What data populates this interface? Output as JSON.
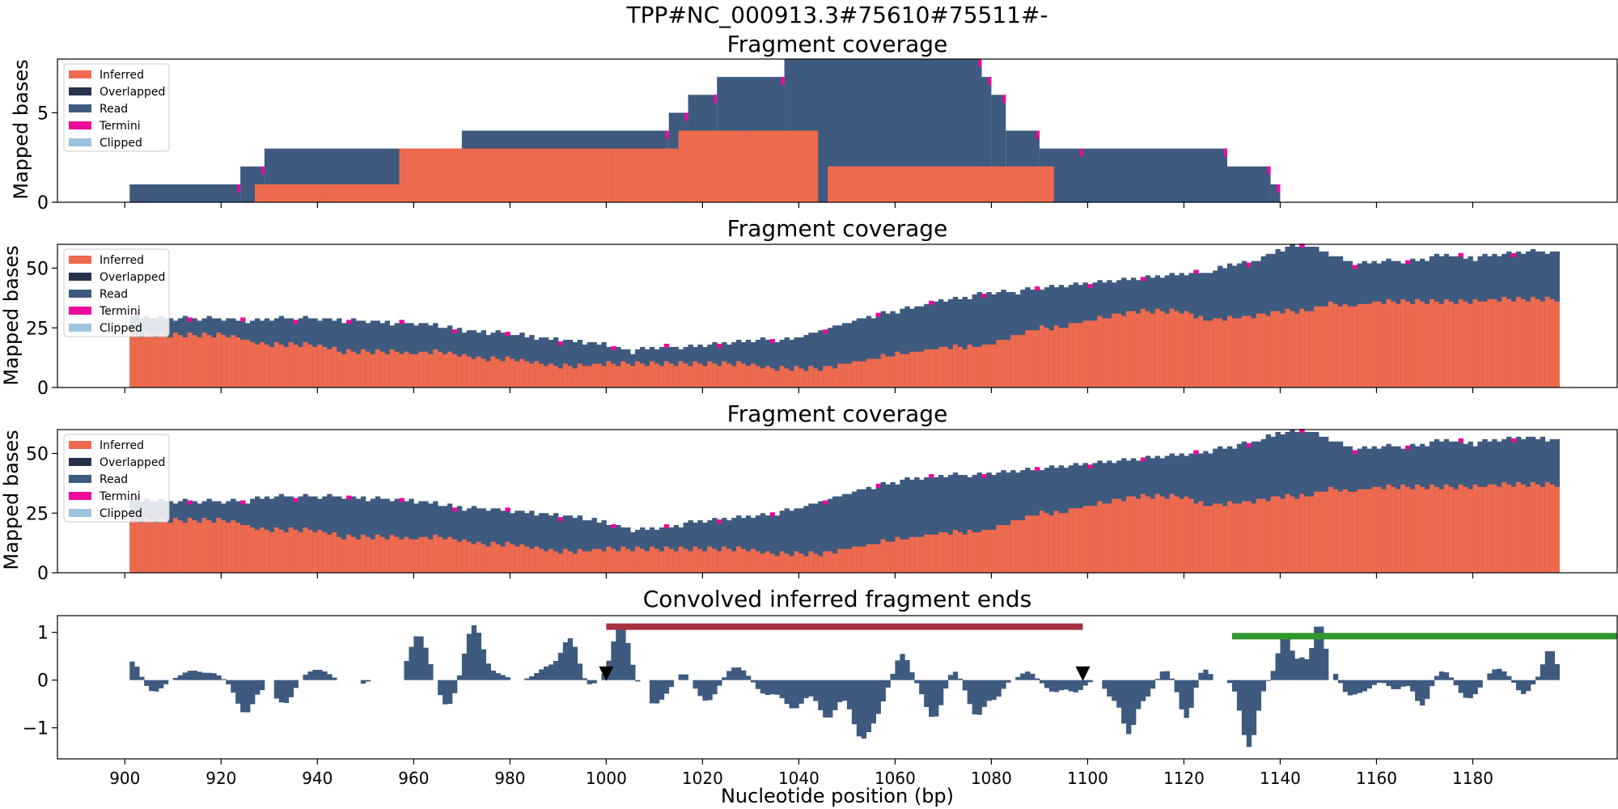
{
  "figure_title": "TPP#NC_000913.3#75610#75511#-",
  "xlabel": "Nucleotide position (bp)",
  "colors": {
    "inferred": "#ee6a4e",
    "overlapped": "#27324a",
    "read": "#3e5a7f",
    "termini": "#ee0a9c",
    "clipped": "#9ec3de",
    "red_bar": "#a4303f",
    "green_bar": "#2f972e",
    "marker": "#000000"
  },
  "legend_labels": [
    "Inferred",
    "Overlapped",
    "Read",
    "Termini",
    "Clipped"
  ],
  "chart_data": [
    {
      "type": "area",
      "title": "Fragment coverage",
      "ylabel": "Mapped bases",
      "xlim": [
        886,
        1210
      ],
      "ylim": [
        0,
        8
      ],
      "yticks": [
        0,
        5
      ],
      "xticks": [
        900,
        920,
        940,
        960,
        980,
        1000,
        1020,
        1040,
        1060,
        1080,
        1100,
        1120,
        1140,
        1160,
        1180
      ],
      "xtick_labels_shown": false,
      "legend_position": "upper-left",
      "series": [
        {
          "name": "Inferred",
          "segments": [
            {
              "x": [
                927,
                942
              ],
              "y": 1
            },
            {
              "x": [
                942,
                957
              ],
              "y": 1
            },
            {
              "x": [
                957,
                1001
              ],
              "y": 3
            },
            {
              "x": [
                1001,
                1015
              ],
              "y": 3
            },
            {
              "x": [
                1015,
                1030
              ],
              "y": 4
            },
            {
              "x": [
                1030,
                1044
              ],
              "y": 4
            },
            {
              "x": [
                1046,
                1059
              ],
              "y": 2
            },
            {
              "x": [
                1059,
                1090
              ],
              "y": 2
            },
            {
              "x": [
                1090,
                1093
              ],
              "y": 2
            }
          ]
        },
        {
          "name": "Read",
          "total_coverage": [
            {
              "x": [
                901,
                924
              ],
              "y": 1
            },
            {
              "x": [
                924,
                929
              ],
              "y": 2
            },
            {
              "x": [
                929,
                970
              ],
              "y": 3
            },
            {
              "x": [
                970,
                1013
              ],
              "y": 4
            },
            {
              "x": [
                1013,
                1017
              ],
              "y": 5
            },
            {
              "x": [
                1017,
                1023
              ],
              "y": 6
            },
            {
              "x": [
                1023,
                1037
              ],
              "y": 7
            },
            {
              "x": [
                1037,
                1078
              ],
              "y": 8
            },
            {
              "x": [
                1078,
                1080
              ],
              "y": 7
            },
            {
              "x": [
                1080,
                1083
              ],
              "y": 6
            },
            {
              "x": [
                1083,
                1090
              ],
              "y": 4
            },
            {
              "x": [
                1090,
                1099
              ],
              "y": 3
            },
            {
              "x": [
                1099,
                1129
              ],
              "y": 3
            },
            {
              "x": [
                1129,
                1138
              ],
              "y": 2
            },
            {
              "x": [
                1138,
                1140
              ],
              "y": 1
            }
          ]
        }
      ]
    },
    {
      "type": "area",
      "title": "Fragment coverage",
      "ylabel": "Mapped bases",
      "xlim": [
        886,
        1210
      ],
      "ylim": [
        0,
        60
      ],
      "yticks": [
        0,
        25,
        50
      ],
      "xtick_labels_shown": false,
      "legend_position": "upper-left",
      "x": [
        901,
        910,
        920,
        925,
        930,
        940,
        945,
        950,
        955,
        960,
        965,
        970,
        975,
        980,
        985,
        990,
        995,
        1000,
        1005,
        1010,
        1015,
        1020,
        1025,
        1030,
        1035,
        1040,
        1045,
        1050,
        1055,
        1060,
        1065,
        1070,
        1075,
        1080,
        1085,
        1090,
        1095,
        1100,
        1105,
        1110,
        1115,
        1120,
        1125,
        1130,
        1135,
        1140,
        1145,
        1150,
        1155,
        1160,
        1165,
        1170,
        1175,
        1180,
        1185,
        1190,
        1195,
        1198
      ],
      "series": [
        {
          "name": "Inferred",
          "values": [
            22,
            22,
            22,
            20,
            18,
            18,
            15,
            15,
            15,
            14,
            15,
            13,
            12,
            12,
            10,
            9,
            9,
            10,
            10,
            10,
            10,
            10,
            10,
            10,
            8,
            8,
            8,
            10,
            12,
            14,
            15,
            17,
            17,
            18,
            22,
            25,
            25,
            28,
            30,
            32,
            32,
            32,
            28,
            29,
            30,
            32,
            32,
            35,
            34,
            36,
            36,
            36,
            36,
            36,
            37,
            37,
            37,
            37
          ]
        },
        {
          "name": "Read",
          "values": [
            30,
            29,
            29,
            28,
            29,
            29,
            28,
            28,
            27,
            27,
            26,
            24,
            23,
            23,
            21,
            20,
            19,
            18,
            15,
            17,
            17,
            18,
            19,
            20,
            20,
            21,
            24,
            27,
            30,
            32,
            34,
            37,
            38,
            40,
            40,
            42,
            43,
            44,
            45,
            46,
            47,
            48,
            48,
            52,
            53,
            58,
            60,
            56,
            52,
            53,
            53,
            54,
            56,
            54,
            56,
            57,
            57,
            56
          ]
        }
      ]
    },
    {
      "type": "area",
      "title": "Fragment coverage",
      "ylabel": "Mapped bases",
      "xlim": [
        886,
        1210
      ],
      "ylim": [
        0,
        60
      ],
      "yticks": [
        0,
        25,
        50
      ],
      "xtick_labels_shown": false,
      "legend_position": "upper-left",
      "x": [
        901,
        910,
        920,
        925,
        930,
        940,
        945,
        950,
        955,
        960,
        965,
        970,
        975,
        980,
        985,
        990,
        995,
        1000,
        1005,
        1010,
        1015,
        1020,
        1025,
        1030,
        1035,
        1040,
        1045,
        1050,
        1055,
        1060,
        1065,
        1070,
        1075,
        1080,
        1085,
        1090,
        1095,
        1100,
        1105,
        1110,
        1115,
        1120,
        1125,
        1130,
        1135,
        1140,
        1145,
        1150,
        1155,
        1160,
        1165,
        1170,
        1175,
        1180,
        1185,
        1190,
        1195,
        1198
      ],
      "series": [
        {
          "name": "Inferred",
          "values": [
            22,
            22,
            22,
            20,
            18,
            18,
            15,
            15,
            15,
            14,
            15,
            13,
            12,
            12,
            10,
            9,
            9,
            10,
            10,
            10,
            10,
            10,
            10,
            10,
            8,
            8,
            8,
            10,
            12,
            14,
            15,
            17,
            17,
            18,
            22,
            25,
            25,
            28,
            30,
            32,
            32,
            32,
            28,
            29,
            30,
            32,
            32,
            35,
            34,
            36,
            36,
            36,
            36,
            36,
            37,
            37,
            37,
            37
          ]
        },
        {
          "name": "Read",
          "values": [
            31,
            30,
            30,
            30,
            32,
            32,
            32,
            31,
            31,
            30,
            29,
            27,
            27,
            26,
            25,
            24,
            23,
            21,
            18,
            19,
            20,
            22,
            23,
            24,
            25,
            27,
            30,
            33,
            36,
            38,
            40,
            41,
            41,
            42,
            43,
            44,
            45,
            46,
            47,
            48,
            49,
            50,
            51,
            53,
            55,
            59,
            60,
            56,
            52,
            53,
            53,
            54,
            56,
            54,
            56,
            57,
            56,
            55
          ]
        }
      ]
    },
    {
      "type": "bar",
      "title": "Convolved inferred fragment ends",
      "xlabel": "Nucleotide position (bp)",
      "xlim": [
        886,
        1210
      ],
      "ylim": [
        -1.65,
        1.35
      ],
      "yticks": [
        -1,
        0,
        1
      ],
      "yticklabels": [
        "−1",
        "0",
        "1"
      ],
      "xticks": [
        900,
        920,
        940,
        960,
        980,
        1000,
        1020,
        1040,
        1060,
        1080,
        1100,
        1120,
        1140,
        1160,
        1180
      ],
      "xtick_labels_shown": true,
      "peaks": [
        {
          "c": 901.5,
          "w": 1.5,
          "a": 0.4
        },
        {
          "c": 906,
          "w": 1.8,
          "a": -0.25
        },
        {
          "c": 914,
          "w": 2.2,
          "a": 0.2
        },
        {
          "c": 918.5,
          "w": 1.5,
          "a": 0.12
        },
        {
          "c": 925,
          "w": 1.8,
          "a": -0.7
        },
        {
          "c": 930.5,
          "w": 1.6,
          "a": -0.22
        },
        {
          "c": 933.5,
          "w": 1.6,
          "a": -0.45
        },
        {
          "c": 940,
          "w": 2.5,
          "a": 0.22
        },
        {
          "c": 947,
          "w": 1.8,
          "a": -0.2
        },
        {
          "c": 961,
          "w": 1.9,
          "a": 0.95
        },
        {
          "c": 967,
          "w": 1.7,
          "a": -0.55
        },
        {
          "c": 972.5,
          "w": 1.8,
          "a": 1.15
        },
        {
          "c": 977.5,
          "w": 1.7,
          "a": 0.12
        },
        {
          "c": 988,
          "w": 2.2,
          "a": 0.28
        },
        {
          "c": 992.5,
          "w": 1.7,
          "a": 0.85
        },
        {
          "c": 996,
          "w": 1.4,
          "a": -0.15
        },
        {
          "c": 1003,
          "w": 1.7,
          "a": 1.2
        },
        {
          "c": 1010,
          "w": 2.4,
          "a": -0.5
        },
        {
          "c": 1016,
          "w": 1.3,
          "a": 0.18
        },
        {
          "c": 1021,
          "w": 2.0,
          "a": -0.45
        },
        {
          "c": 1027,
          "w": 2.3,
          "a": 0.28
        },
        {
          "c": 1033,
          "w": 2.0,
          "a": -0.3
        },
        {
          "c": 1039,
          "w": 2.2,
          "a": -0.6
        },
        {
          "c": 1046,
          "w": 2.0,
          "a": -0.8
        },
        {
          "c": 1053,
          "w": 2.0,
          "a": -1.2
        },
        {
          "c": 1056.5,
          "w": 1.5,
          "a": -0.45
        },
        {
          "c": 1061.5,
          "w": 1.4,
          "a": 0.55
        },
        {
          "c": 1068,
          "w": 1.8,
          "a": -0.8
        },
        {
          "c": 1072,
          "w": 1.3,
          "a": 0.25
        },
        {
          "c": 1077,
          "w": 1.7,
          "a": -0.75
        },
        {
          "c": 1081,
          "w": 1.3,
          "a": -0.35
        },
        {
          "c": 1087.5,
          "w": 1.4,
          "a": 0.18
        },
        {
          "c": 1093,
          "w": 1.7,
          "a": -0.25
        },
        {
          "c": 1097.5,
          "w": 1.6,
          "a": -0.25
        },
        {
          "c": 1105,
          "w": 1.3,
          "a": -0.35
        },
        {
          "c": 1108.5,
          "w": 1.4,
          "a": -1.1
        },
        {
          "c": 1112,
          "w": 1.5,
          "a": -0.35
        },
        {
          "c": 1116,
          "w": 1.3,
          "a": 0.22
        },
        {
          "c": 1120.5,
          "w": 1.4,
          "a": -0.8
        },
        {
          "c": 1124,
          "w": 1.3,
          "a": 0.25
        },
        {
          "c": 1133.5,
          "w": 1.6,
          "a": -1.4
        },
        {
          "c": 1141,
          "w": 1.4,
          "a": 1.0
        },
        {
          "c": 1144.5,
          "w": 1.0,
          "a": 0.4
        },
        {
          "c": 1148,
          "w": 1.3,
          "a": 1.2
        },
        {
          "c": 1151.5,
          "w": 1.2,
          "a": 0.2
        },
        {
          "c": 1154,
          "w": 1.7,
          "a": -0.3
        },
        {
          "c": 1157.5,
          "w": 1.7,
          "a": -0.2
        },
        {
          "c": 1164,
          "w": 1.5,
          "a": -0.2
        },
        {
          "c": 1169.5,
          "w": 1.5,
          "a": -0.55
        },
        {
          "c": 1174,
          "w": 2.0,
          "a": 0.22
        },
        {
          "c": 1179,
          "w": 2.2,
          "a": -0.4
        },
        {
          "c": 1185,
          "w": 2.0,
          "a": 0.25
        },
        {
          "c": 1190.5,
          "w": 1.4,
          "a": -0.3
        },
        {
          "c": 1196,
          "w": 1.3,
          "a": 0.65
        }
      ],
      "gaps": [
        [
          929,
          931
        ],
        [
          944,
          949
        ],
        [
          954,
          958
        ],
        [
          980,
          983
        ],
        [
          1007,
          1009
        ],
        [
          1101,
          1103
        ],
        [
          1126,
          1129
        ],
        [
          1150,
          1151
        ]
      ],
      "annotations": {
        "red_bar": {
          "x": [
            1000,
            1099
          ],
          "y": 1.12
        },
        "green_bar": {
          "x": [
            1130,
            1210
          ],
          "y": 0.92
        },
        "markers": [
          {
            "x": 1000,
            "y": 0.05
          },
          {
            "x": 1099,
            "y": 0.05
          }
        ]
      }
    }
  ]
}
